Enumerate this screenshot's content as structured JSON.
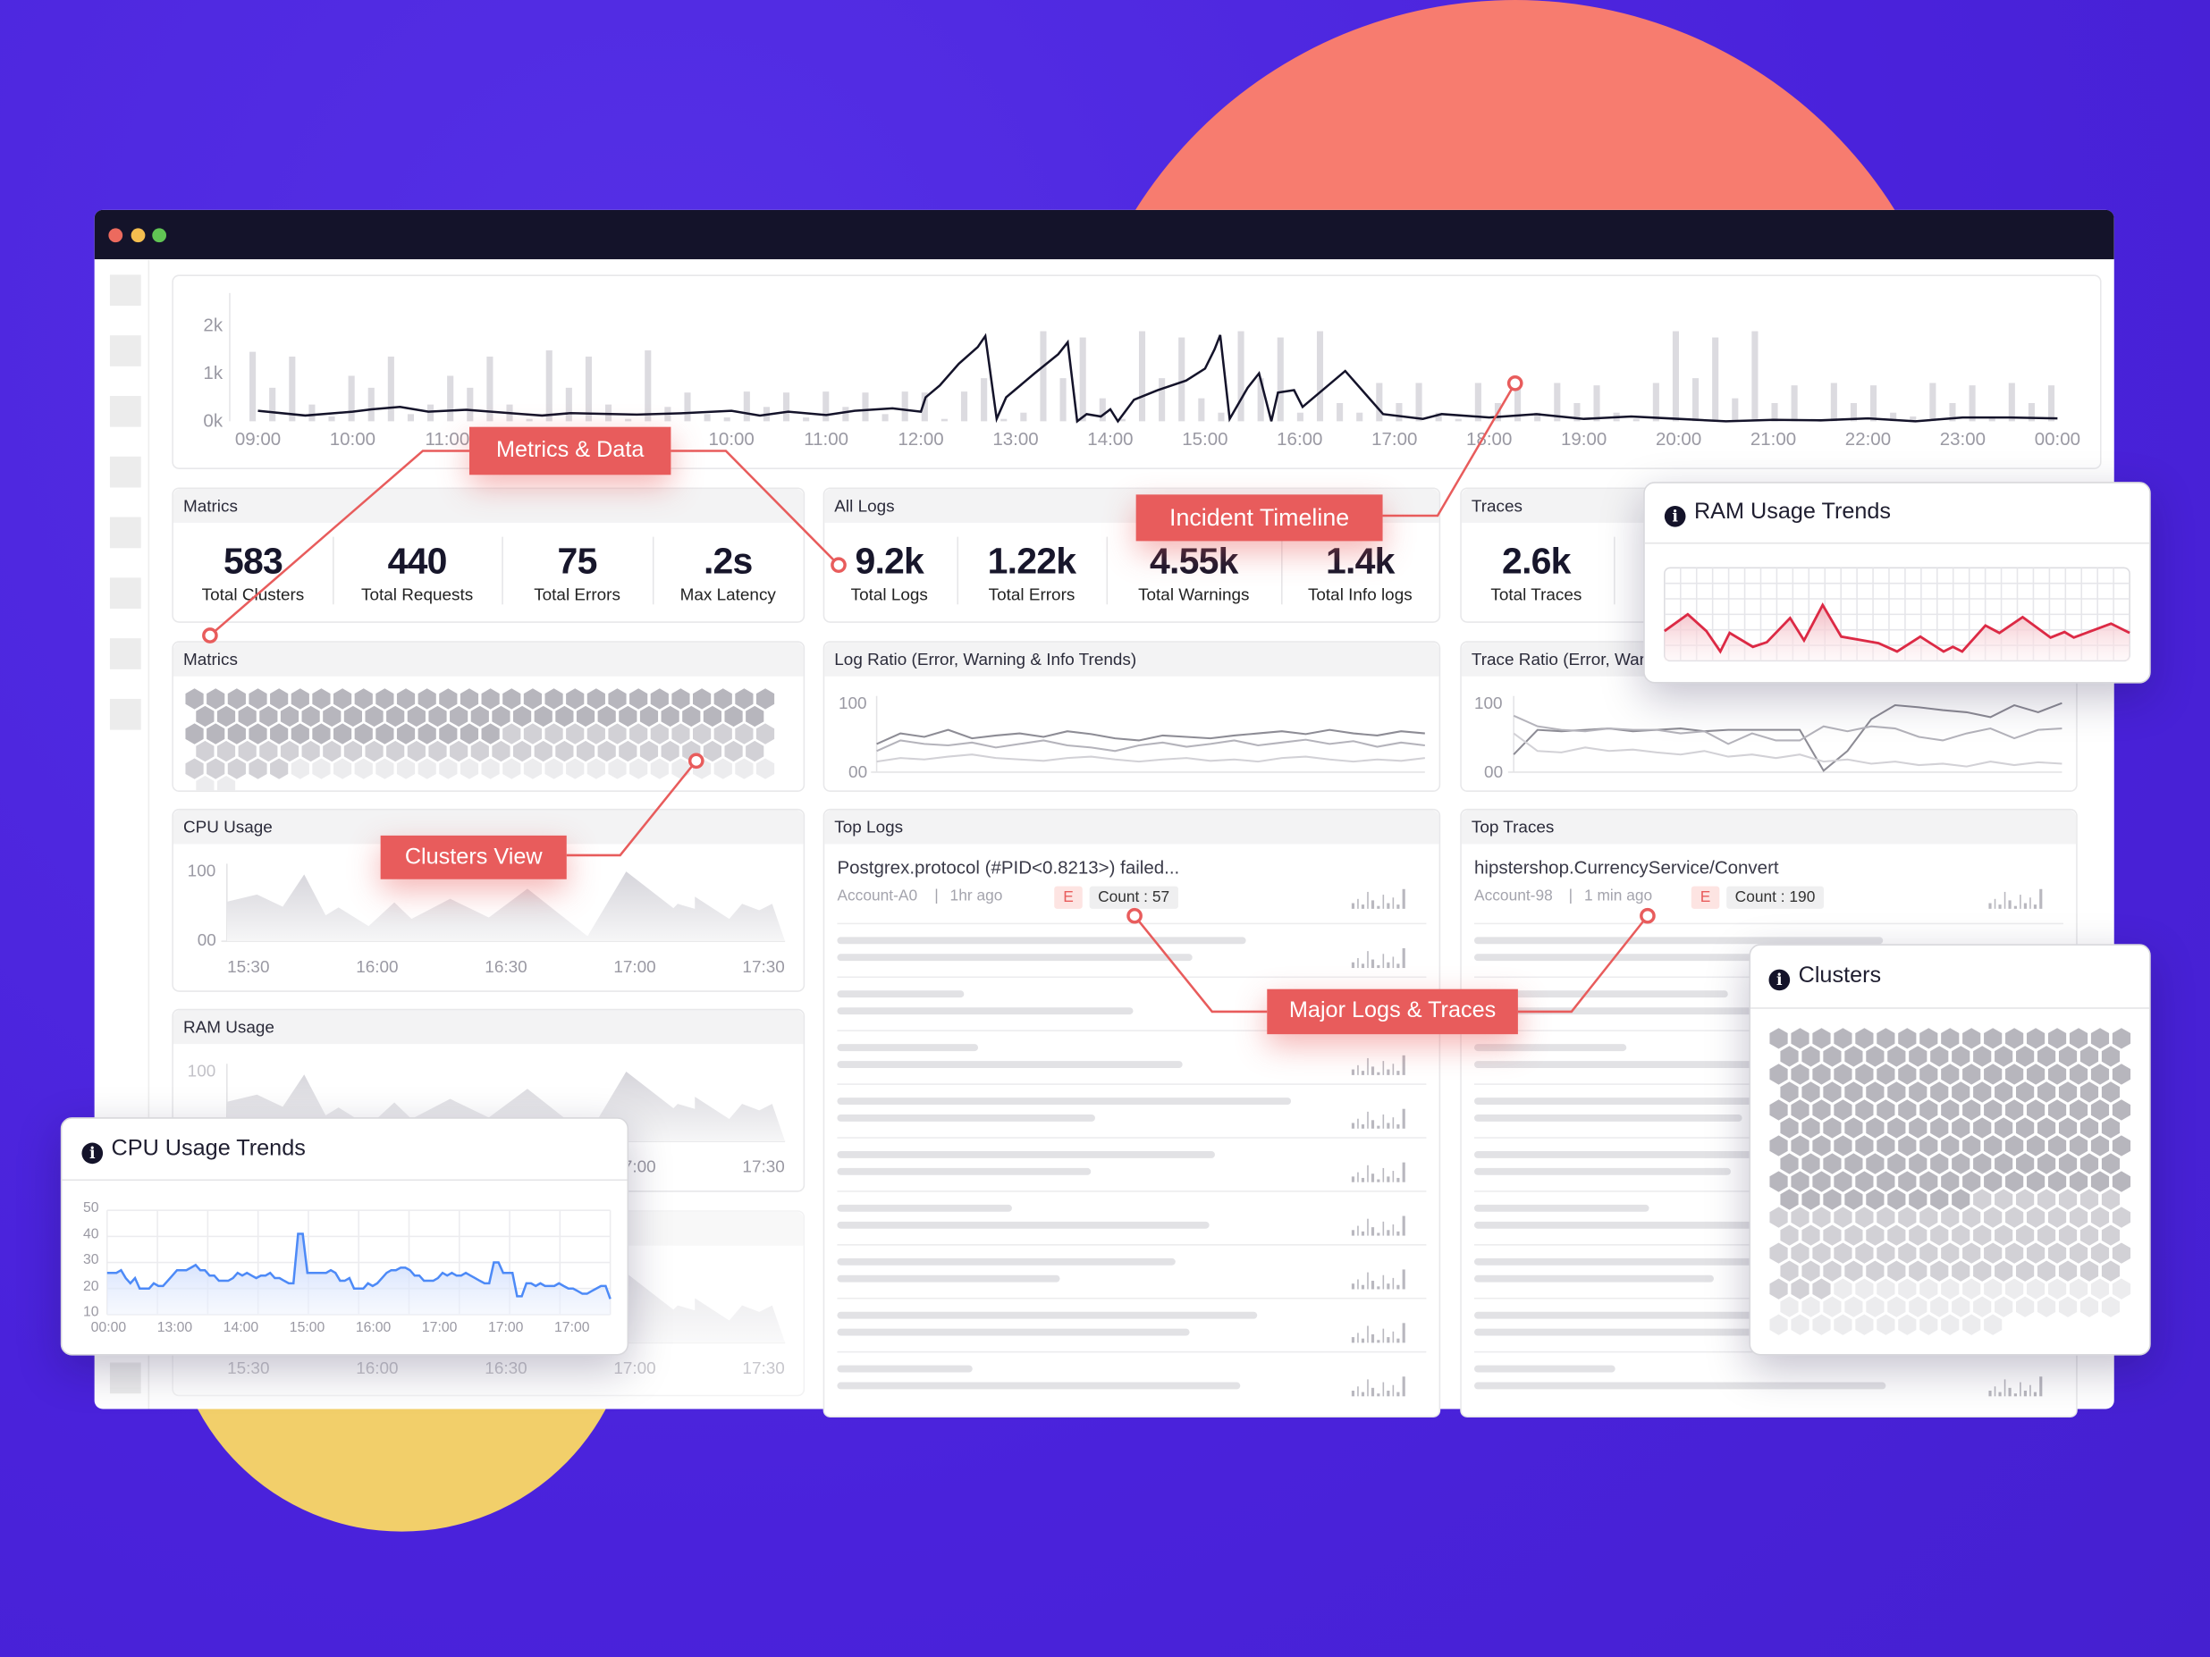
{
  "colors": {
    "background": "#4b24dc",
    "accent_circle": "#f77c6f",
    "yellow_circle": "#f2cf6a",
    "titlebar": "#14132a",
    "callout": "#e85c5c",
    "cpu_line": "#4d8af7",
    "ram_line": "#dc2a45",
    "dot_red": "#ec6a5e",
    "dot_yellow": "#f4be4f",
    "dot_green": "#61c454"
  },
  "window": {
    "controls": [
      "close",
      "minimize",
      "maximize"
    ]
  },
  "timeline": {
    "chart_data": {
      "type": "bar+line",
      "y_ticks": [
        "2k",
        "1k",
        "0k"
      ],
      "ylim": [
        0,
        2.2
      ],
      "x_ticks": [
        "09:00",
        "10:00",
        "11:00",
        "",
        "",
        "10:00",
        "11:00",
        "12:00",
        "13:00",
        "14:00",
        "15:00",
        "16:00",
        "17:00",
        "18:00",
        "19:00",
        "20:00",
        "21:00",
        "22:00",
        "23:00",
        "00:00"
      ],
      "bars_k": [
        1.45,
        0.7,
        1.35,
        0.35,
        0.1,
        0.95,
        0.7,
        1.35,
        0.15,
        0.35,
        0.95,
        0.7,
        1.35,
        0.35,
        0.05,
        1.48,
        0.7,
        1.35,
        0.35,
        0.05,
        1.48,
        0.3,
        0.6,
        0.15,
        0.08,
        0.62,
        0.3,
        0.6,
        0.08,
        0.62,
        0.3,
        0.6,
        0.15,
        0.62,
        0.6,
        0.05,
        0.62,
        0.9,
        0.05,
        0.18,
        1.88,
        0.9,
        1.75,
        0.48,
        0.05,
        1.88,
        0.9,
        1.75,
        0.48,
        0.18,
        1.88,
        0.9,
        1.75,
        0.18,
        1.88,
        0.38,
        0.18,
        0.8,
        0.38,
        0.8,
        0.18,
        0.05,
        0.8,
        0.38,
        0.8,
        0.18,
        0.8,
        0.38,
        0.75,
        0.18,
        0.05,
        0.8,
        1.88,
        0.9,
        1.75,
        0.48,
        1.88,
        0.38,
        0.75,
        0.05,
        0.8,
        0.38,
        0.75,
        0.18,
        0.1,
        0.8,
        0.38,
        0.75,
        0.1,
        0.8,
        0.38,
        0.75
      ],
      "line_k": [
        [
          0,
          0.22
        ],
        [
          0.5,
          0.12
        ],
        [
          1,
          0.2
        ],
        [
          1.2,
          0.25
        ],
        [
          1.5,
          0.3
        ],
        [
          1.8,
          0.2
        ],
        [
          2.2,
          0.24
        ],
        [
          2.8,
          0.15
        ],
        [
          3,
          0.12
        ],
        [
          3.3,
          0.17
        ],
        [
          4,
          0.14
        ],
        [
          4.5,
          0.17
        ],
        [
          5,
          0.22
        ],
        [
          5.3,
          0.12
        ],
        [
          5.6,
          0.2
        ],
        [
          6,
          0.13
        ],
        [
          6.3,
          0.22
        ],
        [
          6.7,
          0.27
        ],
        [
          7,
          0.2
        ],
        [
          7.05,
          0.5
        ],
        [
          7.2,
          0.75
        ],
        [
          7.4,
          1.2
        ],
        [
          7.6,
          1.55
        ],
        [
          7.68,
          1.78
        ],
        [
          7.8,
          0.05
        ],
        [
          7.9,
          0.5
        ],
        [
          8.2,
          1.0
        ],
        [
          8.45,
          1.4
        ],
        [
          8.55,
          1.65
        ],
        [
          8.65,
          0.0
        ],
        [
          8.75,
          0.15
        ],
        [
          8.9,
          0.1
        ],
        [
          9.0,
          0.25
        ],
        [
          9.08,
          0.0
        ],
        [
          9.25,
          0.45
        ],
        [
          9.5,
          0.65
        ],
        [
          9.8,
          0.85
        ],
        [
          10.0,
          1.1
        ],
        [
          10.1,
          1.5
        ],
        [
          10.16,
          1.8
        ],
        [
          10.26,
          0.05
        ],
        [
          10.45,
          0.7
        ],
        [
          10.57,
          1.0
        ],
        [
          10.7,
          0.0
        ],
        [
          10.77,
          0.6
        ],
        [
          10.94,
          0.65
        ],
        [
          11.03,
          0.3
        ],
        [
          11.3,
          0.75
        ],
        [
          11.48,
          1.05
        ],
        [
          11.88,
          0.15
        ],
        [
          12.3,
          0.05
        ],
        [
          12.5,
          0.15
        ],
        [
          13,
          0.08
        ],
        [
          13.5,
          0.15
        ],
        [
          14,
          0.05
        ],
        [
          14.5,
          0.1
        ],
        [
          15,
          0.05
        ],
        [
          15.5,
          0.0
        ],
        [
          16,
          0.03
        ],
        [
          16.5,
          0.02
        ],
        [
          17,
          0.06
        ],
        [
          17.5,
          0.0
        ],
        [
          18,
          0.08
        ],
        [
          18.5,
          0.08
        ],
        [
          19,
          0.06
        ]
      ]
    }
  },
  "metrics": {
    "title": "Matrics",
    "stats": [
      {
        "value": "583",
        "label": "Total Clusters"
      },
      {
        "value": "440",
        "label": "Total Requests"
      },
      {
        "value": "75",
        "label": "Total Errors"
      },
      {
        "value": ".2s",
        "label": "Max Latency"
      }
    ]
  },
  "all_logs": {
    "title": "All Logs",
    "stats": [
      {
        "value": "9.2k",
        "label": "Total Logs"
      },
      {
        "value": "1.22k",
        "label": "Total Errors"
      },
      {
        "value": "4.55k",
        "label": "Total Warnings"
      },
      {
        "value": "1.4k",
        "label": "Total Info logs"
      }
    ]
  },
  "traces": {
    "title": "Traces",
    "stats": [
      {
        "value": "2.6k",
        "label": "Total Traces"
      }
    ]
  },
  "clusters_mini": {
    "title": "Matrics",
    "hex_counts": {
      "dark": 70,
      "mid": 45,
      "light": 25
    }
  },
  "log_ratio": {
    "title": "Log Ratio (Error, Warning & Info Trends)",
    "chart_data": {
      "type": "line",
      "y_ticks": [
        "100",
        "00"
      ],
      "ylim": [
        0,
        100
      ],
      "series": [
        {
          "values": [
            40,
            55,
            50,
            60,
            48,
            52,
            55,
            50,
            58,
            54,
            48,
            45,
            52,
            50,
            48,
            52,
            55,
            58,
            54,
            60,
            55,
            52,
            58,
            55
          ]
        },
        {
          "values": [
            30,
            45,
            40,
            38,
            42,
            35,
            40,
            45,
            38,
            35,
            30,
            38,
            42,
            36,
            40,
            45,
            38,
            42,
            46,
            40,
            44,
            36,
            42,
            38
          ]
        },
        {
          "values": [
            15,
            20,
            18,
            22,
            25,
            20,
            18,
            16,
            20,
            22,
            18,
            15,
            18,
            20,
            16,
            18,
            15,
            20,
            22,
            18,
            15,
            18,
            16,
            20
          ]
        }
      ]
    }
  },
  "trace_ratio": {
    "title": "Trace Ratio (Error, War",
    "chart_data": {
      "type": "line",
      "y_ticks": [
        "100",
        "00"
      ],
      "ylim": [
        0,
        100
      ],
      "series": [
        {
          "values": [
            25,
            60,
            58,
            60,
            62,
            58,
            60,
            62,
            58,
            60,
            60,
            60,
            60,
            2,
            30,
            75,
            95,
            92,
            88,
            85,
            78,
            95,
            85,
            98
          ]
        },
        {
          "values": [
            80,
            65,
            60,
            58,
            62,
            60,
            60,
            55,
            58,
            40,
            55,
            45,
            45,
            65,
            58,
            65,
            62,
            50,
            45,
            55,
            62,
            48,
            60,
            62
          ]
        },
        {
          "values": [
            55,
            30,
            28,
            35,
            30,
            32,
            28,
            25,
            30,
            22,
            25,
            20,
            25,
            15,
            18,
            12,
            15,
            10,
            12,
            8,
            15,
            10,
            14,
            12
          ]
        }
      ]
    }
  },
  "cpu_usage": {
    "title": "CPU Usage",
    "chart_data": {
      "type": "area",
      "y_ticks": [
        "100",
        "00"
      ],
      "ylim": [
        0,
        100
      ],
      "x_ticks": [
        "15:30",
        "16:00",
        "16:30",
        "17:00",
        "17:30"
      ],
      "points": [
        [
          "15:25",
          55
        ],
        [
          "15:32",
          65
        ],
        [
          "15:38",
          48
        ],
        [
          "15:43",
          93
        ],
        [
          "15:48",
          36
        ],
        [
          "15:51",
          47
        ],
        [
          "15:58",
          21
        ],
        [
          "16:04",
          54
        ],
        [
          "16:08",
          31
        ],
        [
          "16:17",
          59
        ],
        [
          "16:26",
          33
        ],
        [
          "16:35",
          73
        ],
        [
          "16:49",
          7
        ],
        [
          "16:58",
          97
        ],
        [
          "17:09",
          46
        ],
        [
          "17:10",
          52
        ],
        [
          "17:14",
          45
        ],
        [
          "17:14",
          62
        ],
        [
          "17:22",
          31
        ],
        [
          "17:25",
          52
        ],
        [
          "17:29",
          43
        ],
        [
          "17:32",
          52
        ],
        [
          "17:35",
          0
        ]
      ]
    }
  },
  "ram_usage": {
    "title": "RAM Usage",
    "chart_data": {
      "type": "area",
      "y_ticks": [
        "100"
      ],
      "ylim": [
        0,
        100
      ],
      "x_ticks": [
        "15:30",
        "16:00",
        "16:30",
        "17:00",
        "17:30"
      ],
      "points": [
        [
          "15:25",
          55
        ],
        [
          "15:32",
          65
        ],
        [
          "15:38",
          48
        ],
        [
          "15:43",
          93
        ],
        [
          "15:48",
          36
        ],
        [
          "15:51",
          47
        ],
        [
          "15:58",
          21
        ],
        [
          "16:04",
          54
        ],
        [
          "16:08",
          31
        ],
        [
          "16:17",
          59
        ],
        [
          "16:26",
          33
        ],
        [
          "16:35",
          73
        ],
        [
          "16:49",
          7
        ],
        [
          "16:58",
          97
        ],
        [
          "17:09",
          46
        ],
        [
          "17:10",
          52
        ],
        [
          "17:14",
          45
        ],
        [
          "17:14",
          62
        ],
        [
          "17:22",
          31
        ],
        [
          "17:25",
          52
        ],
        [
          "17:29",
          43
        ],
        [
          "17:32",
          52
        ],
        [
          "17:35",
          0
        ]
      ]
    }
  },
  "third_chart": {
    "x_ticks": [
      "15:30",
      "16:00",
      "16:30",
      "17:00",
      "17:30"
    ]
  },
  "top_logs": {
    "title": "Top Logs",
    "first": {
      "title": "Postgrex.protocol (#PID<0.8213>) failed...",
      "account": "Account-A0",
      "sep": "|",
      "time": "1hr ago",
      "badge": "E",
      "count": "Count : 57"
    }
  },
  "top_traces": {
    "title": "Top Traces",
    "first": {
      "title": "hipstershop.CurrencyService/Convert",
      "account": "Account-98",
      "sep": "|",
      "time": "1 min ago",
      "badge": "E",
      "count": "Count : 190"
    }
  },
  "ram_trends_popup": {
    "title": "RAM Usage Trends",
    "icon": "info-icon",
    "chart_data": {
      "type": "area",
      "ylim": [
        0,
        100
      ],
      "points": [
        [
          0,
          32
        ],
        [
          5,
          50
        ],
        [
          9,
          32
        ],
        [
          12,
          10
        ],
        [
          14,
          30
        ],
        [
          19,
          15
        ],
        [
          22,
          20
        ],
        [
          27,
          46
        ],
        [
          30,
          22
        ],
        [
          34,
          60
        ],
        [
          38,
          26
        ],
        [
          46,
          19
        ],
        [
          50,
          10
        ],
        [
          55,
          26
        ],
        [
          60,
          10
        ],
        [
          62,
          15
        ],
        [
          64,
          10
        ],
        [
          69,
          38
        ],
        [
          72,
          30
        ],
        [
          77,
          47
        ],
        [
          83,
          25
        ],
        [
          86,
          31
        ],
        [
          88,
          25
        ],
        [
          96,
          40
        ],
        [
          100,
          30
        ]
      ]
    }
  },
  "cpu_trends_popup": {
    "title": "CPU Usage Trends",
    "icon": "info-icon",
    "chart_data": {
      "type": "area",
      "y_ticks": [
        "50",
        "40",
        "30",
        "20",
        "10"
      ],
      "ylim": [
        10,
        50
      ],
      "x_ticks": [
        "00:00",
        "13:00",
        "14:00",
        "15:00",
        "16:00",
        "17:00",
        "17:00",
        "17:00"
      ],
      "values": [
        26,
        26,
        26,
        27,
        24,
        22,
        24,
        20,
        20,
        20,
        22,
        21,
        21,
        23,
        25,
        27,
        27,
        27,
        28,
        29,
        27,
        27,
        25,
        25,
        23,
        23,
        23,
        24,
        26,
        25,
        26,
        25,
        24,
        25,
        25,
        26,
        24,
        24,
        23,
        22,
        22,
        41,
        41,
        26,
        26,
        26,
        26,
        26,
        27,
        26,
        23,
        23,
        24,
        20,
        20,
        20,
        22,
        21,
        22,
        24,
        26,
        27,
        27,
        28,
        28,
        27,
        25,
        25,
        23,
        23,
        23,
        24,
        26,
        25,
        26,
        25,
        25,
        26,
        25,
        24,
        23,
        22,
        22,
        30,
        30,
        26,
        26,
        26,
        17,
        17,
        22,
        22,
        21,
        22,
        21,
        21,
        21,
        22,
        21,
        20,
        20,
        19,
        18,
        18,
        19,
        20,
        21,
        21,
        16
      ]
    }
  },
  "clusters_popup": {
    "title": "Clusters",
    "icon": "info-icon",
    "hex_counts": {
      "dark": 158,
      "mid": 76,
      "light": 41
    }
  },
  "callouts": {
    "metrics_data": "Metrics & Data",
    "incident_timeline": "Incident Timeline",
    "clusters_view": "Clusters View",
    "major_logs_traces": "Major Logs & Traces"
  }
}
